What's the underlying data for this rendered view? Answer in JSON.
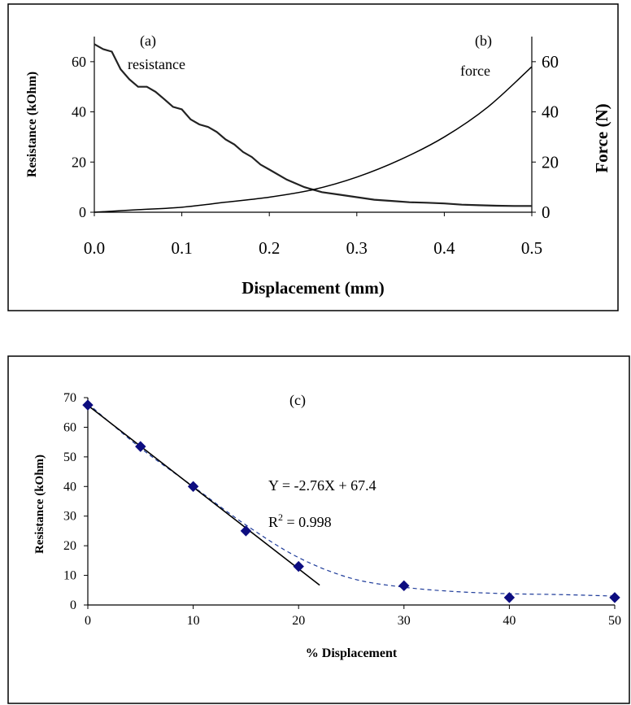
{
  "chart_data": [
    {
      "type": "line",
      "panel_labels": [
        "(a)",
        "(b)"
      ],
      "xlabel": "Displacement (mm)",
      "ylabel_left": "Resistance (kOhm)",
      "ylabel_right": "Force (N)",
      "xlim": [
        0,
        0.5
      ],
      "ylim_left": [
        0,
        70
      ],
      "ylim_right": [
        0,
        70
      ],
      "x_ticks": [
        "0.0",
        "0.1",
        "0.2",
        "0.3",
        "0.4",
        "0.5"
      ],
      "y_ticks_left": [
        "0",
        "20",
        "40",
        "60"
      ],
      "y_ticks_right": [
        "0",
        "20",
        "40",
        "60"
      ],
      "grid": false,
      "series": [
        {
          "name": "resistance",
          "axis": "left",
          "x": [
            0.0,
            0.01,
            0.02,
            0.03,
            0.04,
            0.05,
            0.06,
            0.07,
            0.08,
            0.09,
            0.1,
            0.11,
            0.12,
            0.13,
            0.14,
            0.15,
            0.16,
            0.17,
            0.18,
            0.19,
            0.2,
            0.22,
            0.24,
            0.26,
            0.28,
            0.3,
            0.32,
            0.34,
            0.36,
            0.38,
            0.4,
            0.42,
            0.44,
            0.46,
            0.48,
            0.5
          ],
          "values": [
            67,
            65,
            64,
            57,
            53,
            50,
            50,
            48,
            45,
            42,
            41,
            37,
            35,
            34,
            32,
            29,
            27,
            24,
            22,
            19,
            17,
            13,
            10,
            8,
            7,
            6,
            5,
            4.5,
            4,
            3.8,
            3.5,
            3,
            2.8,
            2.6,
            2.5,
            2.5
          ]
        },
        {
          "name": "force",
          "axis": "right",
          "x": [
            0.0,
            0.05,
            0.1,
            0.15,
            0.2,
            0.25,
            0.3,
            0.35,
            0.4,
            0.45,
            0.5
          ],
          "values": [
            0,
            1,
            2,
            4,
            6,
            9,
            14,
            21,
            30,
            42,
            58
          ]
        }
      ]
    },
    {
      "type": "scatter",
      "panel_label": "(c)",
      "xlabel": "% Displacement",
      "ylabel": "Resistance (kOhm)",
      "xlim": [
        0,
        50
      ],
      "ylim": [
        0,
        70
      ],
      "x_ticks": [
        "0",
        "10",
        "20",
        "30",
        "40",
        "50"
      ],
      "y_ticks": [
        "0",
        "10",
        "20",
        "30",
        "40",
        "50",
        "60",
        "70"
      ],
      "grid": false,
      "series": [
        {
          "marker": "diamond",
          "color": "#0d0d80",
          "x": [
            0,
            5,
            10,
            15,
            20,
            30,
            40,
            50
          ],
          "values": [
            67.5,
            53.5,
            40,
            25,
            13,
            6.5,
            2.5,
            2.5
          ]
        }
      ],
      "fit_line": {
        "x": [
          0,
          22
        ],
        "values": [
          67.4,
          6.68
        ]
      },
      "trend_curve": {
        "color": "#1f3c9a",
        "x": [
          0,
          5,
          10,
          15,
          20,
          25,
          30,
          35,
          40,
          45,
          50
        ],
        "values": [
          68,
          53,
          40,
          27,
          16,
          9,
          6,
          4.5,
          3.8,
          3.5,
          3
        ]
      },
      "equation_text": "Y = -2.76X + 67.4",
      "r2_prefix": "R",
      "r2_exp": "2",
      "r2_value": " = 0.998"
    }
  ],
  "labels": {
    "resistance": "resistance",
    "force": "force"
  }
}
